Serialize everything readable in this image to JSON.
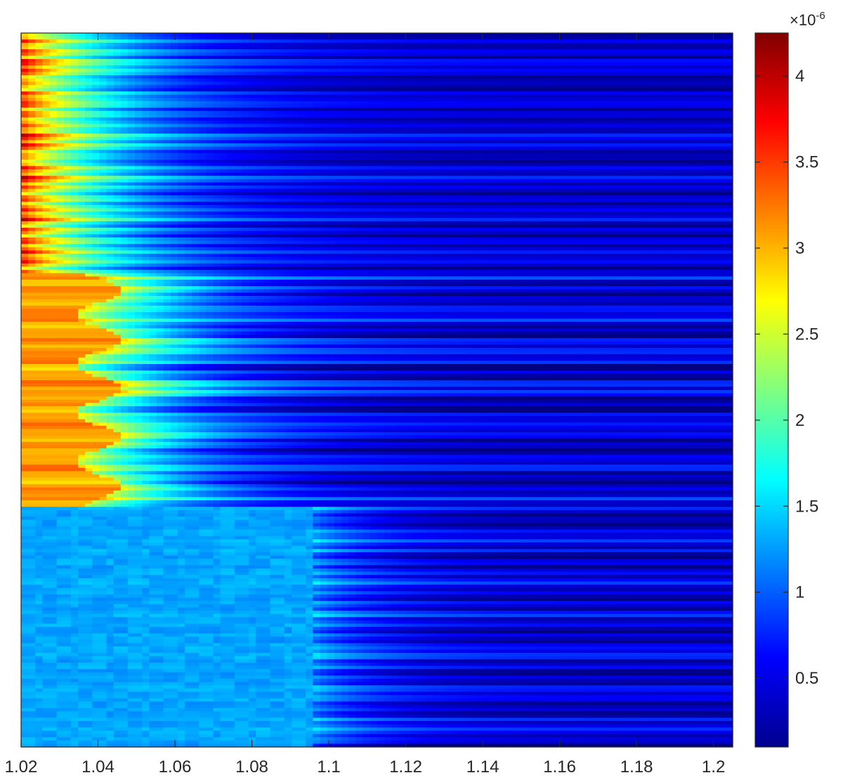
{
  "chart_data": {
    "type": "heatmap",
    "title": "",
    "xlabel": "",
    "ylabel": "",
    "colormap": "jet",
    "xlim": [
      1.02,
      1.205
    ],
    "x_ticks": [
      "1.02",
      "1.04",
      "1.06",
      "1.08",
      "1.1",
      "1.12",
      "1.14",
      "1.16",
      "1.18",
      "1.2"
    ],
    "colorbar": {
      "range": [
        0.1,
        4.25
      ],
      "ticks": [
        "0.5",
        "1",
        "1.5",
        "2",
        "2.5",
        "3",
        "3.5",
        "4"
      ],
      "exponent_base": "×10",
      "exponent_power": "-6"
    },
    "regions": [
      {
        "name": "top",
        "rows_fraction": [
          0.0,
          0.335
        ],
        "left_value": 3.4,
        "right_value": 0.4,
        "band_contrast": "high"
      },
      {
        "name": "middle",
        "rows_fraction": [
          0.335,
          0.665
        ],
        "left_value": 3.1,
        "right_value": 0.45,
        "band_contrast": "high"
      },
      {
        "name": "bottom",
        "rows_fraction": [
          0.665,
          1.0
        ],
        "left_value": 1.3,
        "right_value": 0.45,
        "band_contrast": "medium"
      }
    ],
    "grid": false,
    "legend": "colorbar-right"
  }
}
